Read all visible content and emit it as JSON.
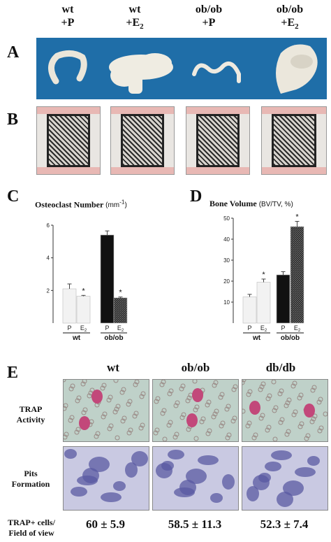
{
  "columns": [
    {
      "line1": "wt",
      "line2": "+P",
      "sub": ""
    },
    {
      "line1": "wt",
      "line2": "+E",
      "sub": "2"
    },
    {
      "line1": "ob/ob",
      "line2": "+P",
      "sub": ""
    },
    {
      "line1": "ob/ob",
      "line2": "+E",
      "sub": "2"
    }
  ],
  "panels": {
    "a": "A",
    "b": "B",
    "c": "C",
    "d": "D",
    "e": "E"
  },
  "colors": {
    "organ_bg": "#1f6ea8",
    "bar_white": "#f2f2f2",
    "bar_black": "#111111",
    "bar_hatched": "#555555",
    "trap_bg": "#bfd1c9",
    "pits_bg": "#c9c9e2"
  },
  "chart_data": [
    {
      "type": "bar",
      "title": "Osteoclast Number",
      "unit": "(mm",
      "unit_sup": "-1",
      "unit_close": ")",
      "ylim": [
        0,
        6
      ],
      "yticks": [
        "2",
        "4",
        "6"
      ],
      "categories": [
        "P",
        "E2",
        "P",
        "E2"
      ],
      "cat_labels": [
        "P",
        "E",
        "P",
        "E"
      ],
      "groups": [
        "wt",
        "ob/ob"
      ],
      "values": [
        2.1,
        1.65,
        5.4,
        1.55
      ],
      "errors": [
        0.3,
        0.05,
        0.25,
        0.05
      ],
      "significant": [
        false,
        true,
        false,
        true
      ],
      "star": "*"
    },
    {
      "type": "bar",
      "title": "Bone Volume",
      "unit": "(BV/TV, %)",
      "ylim": [
        0,
        50
      ],
      "yticks": [
        "10",
        "20",
        "30",
        "40",
        "50"
      ],
      "categories": [
        "P",
        "E2",
        "P",
        "E2"
      ],
      "cat_labels": [
        "P",
        "E",
        "P",
        "E"
      ],
      "groups": [
        "wt",
        "ob/ob"
      ],
      "values": [
        12.5,
        19.5,
        23,
        46
      ],
      "errors": [
        1.2,
        1.5,
        1.5,
        2.5
      ],
      "significant": [
        false,
        true,
        false,
        true
      ],
      "star": "*"
    }
  ],
  "panel_e": {
    "columns": [
      "wt",
      "ob/ob",
      "db/db"
    ],
    "rows": [
      {
        "line1": "TRAP",
        "line2": "Activity"
      },
      {
        "line1": "Pits",
        "line2": "Formation"
      }
    ],
    "stat_label_line1": "TRAP+ cells/",
    "stat_label_line2": "Field of view",
    "stats": [
      "60 ± 5.9",
      "58.5 ± 11.3",
      "52.3 ± 7.4"
    ]
  }
}
